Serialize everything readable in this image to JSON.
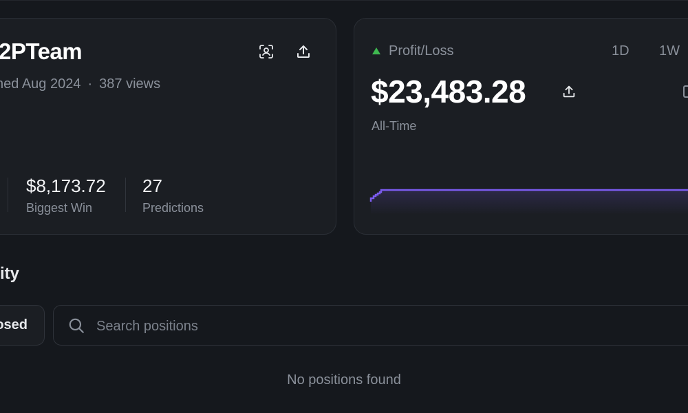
{
  "profile": {
    "name": "2PTeam",
    "joined": "ned Aug 2024",
    "separator": "·",
    "views": "387 views",
    "stats": [
      {
        "value": "$8,173.72",
        "label": "Biggest Win"
      },
      {
        "value": "27",
        "label": "Predictions"
      }
    ]
  },
  "pnl": {
    "label": "Profit/Loss",
    "value": "$23,483.28",
    "period": "All-Time",
    "ranges": [
      "1D",
      "1W"
    ],
    "line_color": "#7c5cf0",
    "up_color": "#3fb950"
  },
  "activity": {
    "title": "ivity",
    "closed_tab": "osed",
    "search_placeholder": "Search positions",
    "empty": "No positions found"
  },
  "icons": {
    "scan": "scan-user-icon",
    "share": "share-upload-icon",
    "search": "search-icon"
  }
}
